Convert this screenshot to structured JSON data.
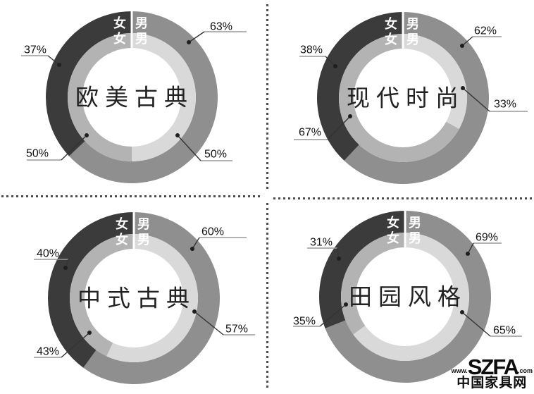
{
  "page": {
    "background_color": "#ffffff",
    "description": "2x2 grid of double-ring donut charts showing furniture style preference split by gender, separated by dotted divider lines"
  },
  "branding": {
    "www": "www.",
    "brand": "SZFA",
    "com": ".com",
    "site_name": "中国家具网"
  },
  "chart_data": {
    "type": "pie",
    "subtype": "double-ring donut, male share drawn clockwise from 12 o'clock, female share counter-clockwise",
    "unit": "%",
    "legend": {
      "female": "女",
      "male": "男"
    },
    "legend_note": "Outer ring: dark = 女 (female), gray = 男 (male). Inner ring: medium gray = 女, light gray = 男. Rings are split by a white line at 12 o'clock where the 女/男 labels sit.",
    "colors": {
      "outer_female": "#3b3b3b",
      "outer_male": "#8f8f8f",
      "inner_female": "#b3b3b3",
      "inner_male": "#d9d9d9",
      "center": "#ffffff",
      "label_text": "#111111",
      "ring_label_text": "#ffffff",
      "leader_line": "#333333",
      "underline": "#999999"
    },
    "charts": [
      {
        "title": "欧美古典",
        "outer": {
          "female": 37,
          "male": 63
        },
        "inner": {
          "female": 50,
          "male": 50
        },
        "labels": {
          "outer_female": "37%",
          "outer_male": "63%",
          "inner_female": "50%",
          "inner_male": "50%"
        }
      },
      {
        "title": "现代时尚",
        "outer": {
          "female": 38,
          "male": 62
        },
        "inner": {
          "female": 67,
          "male": 33
        },
        "labels": {
          "outer_female": "38%",
          "outer_male": "62%",
          "inner_female": "67%",
          "inner_male": "33%"
        }
      },
      {
        "title": "中式古典",
        "outer": {
          "female": 40,
          "male": 60
        },
        "inner": {
          "female": 43,
          "male": 57
        },
        "labels": {
          "outer_female": "40%",
          "outer_male": "60%",
          "inner_female": "43%",
          "inner_male": "57%"
        }
      },
      {
        "title": "田园风格",
        "outer": {
          "female": 31,
          "male": 69
        },
        "inner": {
          "female": 35,
          "male": 65
        },
        "labels": {
          "outer_female": "31%",
          "outer_male": "69%",
          "inner_female": "35%",
          "inner_male": "65%"
        }
      }
    ]
  }
}
